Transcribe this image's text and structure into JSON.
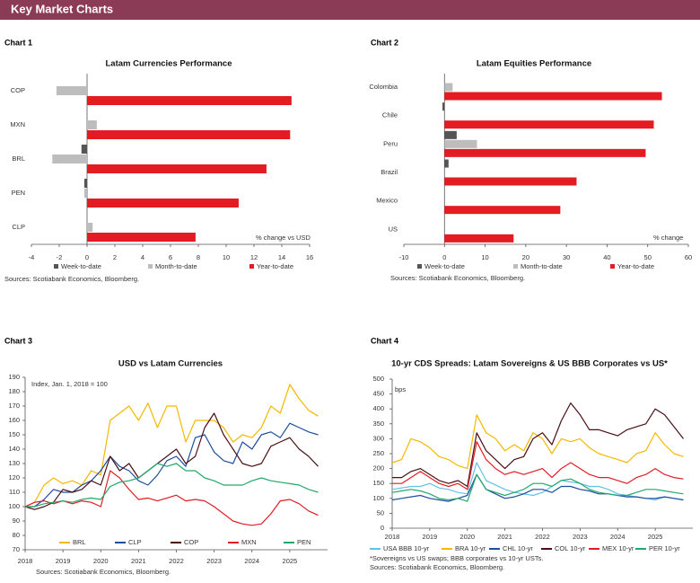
{
  "header": {
    "title": "Key Market Charts"
  },
  "chart_data": [
    {
      "type": "bar",
      "orientation": "horizontal",
      "label": "Chart 1",
      "title": "Latam Currencies Performance",
      "categories": [
        "COP",
        "MXN",
        "BRL",
        "PEN",
        "CLP"
      ],
      "series": [
        {
          "name": "Week-to-date",
          "color": "#555555",
          "values": [
            0.0,
            0.0,
            -0.4,
            -0.2,
            0.0
          ]
        },
        {
          "name": "Month-to-date",
          "color": "#bdbdbd",
          "values": [
            -2.2,
            0.7,
            -2.5,
            -0.2,
            0.4
          ]
        },
        {
          "name": "Year-to-date",
          "color": "#e31b23",
          "values": [
            14.7,
            14.6,
            12.9,
            10.9,
            7.8
          ]
        }
      ],
      "xlim": [
        -4,
        16
      ],
      "xticks": [
        -4,
        -2,
        0,
        2,
        4,
        6,
        8,
        10,
        12,
        14,
        16
      ],
      "annotation": "% change vs USD",
      "source": "Sources: Scotiabank Economics, Bloomberg."
    },
    {
      "type": "bar",
      "orientation": "horizontal",
      "label": "Chart 2",
      "title": "Latam Equities Performance",
      "categories": [
        "Colombia",
        "Chile",
        "Peru",
        "Brazil",
        "Mexico",
        "US"
      ],
      "series": [
        {
          "name": "Week-to-date",
          "color": "#555555",
          "values": [
            0.0,
            -0.5,
            3.0,
            1.0,
            0.0,
            0.0
          ]
        },
        {
          "name": "Month-to-date",
          "color": "#bdbdbd",
          "values": [
            2.0,
            0.0,
            8.0,
            0.0,
            0.0,
            0.0
          ]
        },
        {
          "name": "Year-to-date",
          "color": "#e31b23",
          "values": [
            53.5,
            51.5,
            49.5,
            32.5,
            28.5,
            17.0
          ]
        }
      ],
      "xlim": [
        -10,
        60
      ],
      "xticks": [
        -10,
        0,
        10,
        20,
        30,
        40,
        50,
        60
      ],
      "annotation": "% change",
      "source": "Sources: Scotiabank Economics, Bloomberg."
    },
    {
      "type": "line",
      "label": "Chart 3",
      "title": "USD vs Latam Currencies",
      "annotation": "Index, Jan. 1, 2018 = 100",
      "x": [
        2018,
        2018.25,
        2018.5,
        2018.75,
        2019,
        2019.25,
        2019.5,
        2019.75,
        2020,
        2020.25,
        2020.5,
        2020.75,
        2021,
        2021.25,
        2021.5,
        2021.75,
        2022,
        2022.25,
        2022.5,
        2022.75,
        2023,
        2023.25,
        2023.5,
        2023.75,
        2024,
        2024.25,
        2024.5,
        2024.75,
        2025,
        2025.25,
        2025.5,
        2025.75
      ],
      "series": [
        {
          "name": "BRL",
          "color": "#f5b800",
          "values": [
            100,
            103,
            115,
            120,
            116,
            118,
            115,
            125,
            122,
            160,
            165,
            170,
            160,
            172,
            155,
            170,
            170,
            145,
            160,
            160,
            160,
            155,
            145,
            150,
            148,
            155,
            170,
            165,
            185,
            175,
            167,
            163
          ]
        },
        {
          "name": "CLP",
          "color": "#1f4e9c",
          "values": [
            100,
            100,
            105,
            112,
            110,
            110,
            115,
            118,
            125,
            135,
            128,
            125,
            118,
            115,
            122,
            132,
            135,
            128,
            148,
            150,
            138,
            132,
            130,
            145,
            140,
            150,
            152,
            148,
            158,
            155,
            152,
            150
          ]
        },
        {
          "name": "COP",
          "color": "#4a0f14",
          "values": [
            100,
            98,
            100,
            103,
            112,
            110,
            112,
            118,
            115,
            135,
            125,
            130,
            120,
            125,
            130,
            135,
            140,
            130,
            135,
            155,
            165,
            150,
            140,
            130,
            128,
            130,
            142,
            145,
            148,
            140,
            135,
            128
          ]
        },
        {
          "name": "MXN",
          "color": "#e31b23",
          "values": [
            100,
            103,
            104,
            102,
            104,
            102,
            104,
            103,
            100,
            125,
            120,
            112,
            105,
            106,
            104,
            106,
            108,
            104,
            105,
            104,
            100,
            95,
            90,
            88,
            87,
            88,
            95,
            104,
            105,
            102,
            97,
            94
          ]
        },
        {
          "name": "PEN",
          "color": "#23a86b",
          "values": [
            100,
            100,
            102,
            103,
            104,
            103,
            105,
            106,
            105,
            114,
            117,
            118,
            120,
            125,
            130,
            128,
            130,
            125,
            125,
            120,
            118,
            115,
            115,
            115,
            118,
            120,
            118,
            117,
            116,
            115,
            112,
            110
          ]
        }
      ],
      "xlim": [
        2018,
        2026
      ],
      "xticks": [
        2018,
        2019,
        2020,
        2021,
        2022,
        2023,
        2024,
        2025
      ],
      "ylim": [
        70,
        190
      ],
      "yticks": [
        70,
        80,
        90,
        100,
        110,
        120,
        130,
        140,
        150,
        160,
        170,
        180,
        190
      ],
      "source": "Sources: Scotiabank Economics, Bloomberg."
    },
    {
      "type": "line",
      "label": "Chart 4",
      "title": "10-yr CDS Spreads: Latam Sovereigns & US BBB Corporates vs US*",
      "y_label": "bps",
      "x": [
        2018,
        2018.25,
        2018.5,
        2018.75,
        2019,
        2019.25,
        2019.5,
        2019.75,
        2020,
        2020.25,
        2020.5,
        2020.75,
        2021,
        2021.25,
        2021.5,
        2021.75,
        2022,
        2022.25,
        2022.5,
        2022.75,
        2023,
        2023.25,
        2023.5,
        2023.75,
        2024,
        2024.25,
        2024.5,
        2024.75,
        2025,
        2025.25,
        2025.5,
        2025.75
      ],
      "series": [
        {
          "name": "USA BBB 10-yr",
          "color": "#62c1e5",
          "values": [
            130,
            135,
            140,
            140,
            150,
            135,
            130,
            120,
            115,
            220,
            160,
            145,
            130,
            120,
            115,
            110,
            120,
            140,
            160,
            155,
            150,
            140,
            140,
            130,
            115,
            110,
            105,
            100,
            95,
            105,
            100,
            95
          ]
        },
        {
          "name": "BRA 10-yr",
          "color": "#f5b800",
          "values": [
            220,
            230,
            300,
            290,
            270,
            240,
            230,
            210,
            200,
            380,
            320,
            300,
            260,
            280,
            260,
            320,
            300,
            250,
            300,
            290,
            300,
            270,
            250,
            240,
            230,
            220,
            250,
            260,
            320,
            280,
            250,
            240
          ]
        },
        {
          "name": "CHL 10-yr",
          "color": "#1f4e9c",
          "values": [
            95,
            100,
            105,
            110,
            100,
            95,
            90,
            100,
            110,
            180,
            130,
            115,
            100,
            105,
            115,
            130,
            130,
            120,
            140,
            140,
            130,
            125,
            115,
            115,
            110,
            105,
            105,
            100,
            100,
            105,
            100,
            95
          ]
        },
        {
          "name": "COL 10-yr",
          "color": "#4a0f14",
          "values": [
            170,
            170,
            190,
            200,
            180,
            160,
            150,
            160,
            140,
            320,
            260,
            230,
            200,
            230,
            240,
            300,
            320,
            280,
            360,
            420,
            380,
            330,
            330,
            320,
            310,
            330,
            340,
            350,
            400,
            380,
            340,
            300
          ]
        },
        {
          "name": "MEX 10-yr",
          "color": "#e31b23",
          "values": [
            150,
            150,
            170,
            190,
            170,
            150,
            140,
            150,
            130,
            290,
            230,
            200,
            180,
            190,
            180,
            190,
            200,
            170,
            200,
            220,
            200,
            180,
            170,
            170,
            160,
            150,
            170,
            180,
            200,
            180,
            170,
            165
          ]
        },
        {
          "name": "PER 10-yr",
          "color": "#23a86b",
          "values": [
            120,
            125,
            130,
            125,
            115,
            100,
            95,
            100,
            90,
            180,
            130,
            120,
            110,
            120,
            130,
            150,
            150,
            140,
            160,
            165,
            150,
            130,
            120,
            115,
            110,
            110,
            120,
            130,
            130,
            125,
            120,
            115
          ]
        }
      ],
      "xlim": [
        2018,
        2026
      ],
      "xticks": [
        2018,
        2019,
        2020,
        2021,
        2022,
        2023,
        2024,
        2025
      ],
      "ylim": [
        0,
        500
      ],
      "yticks": [
        0,
        50,
        100,
        150,
        200,
        250,
        300,
        350,
        400,
        450,
        500
      ],
      "footnote": "*Sovereigns vs US swaps; BBB corporates vs 10-yr USTs.",
      "source": "Sources: Scotiabank Economics, Bloomberg."
    }
  ]
}
